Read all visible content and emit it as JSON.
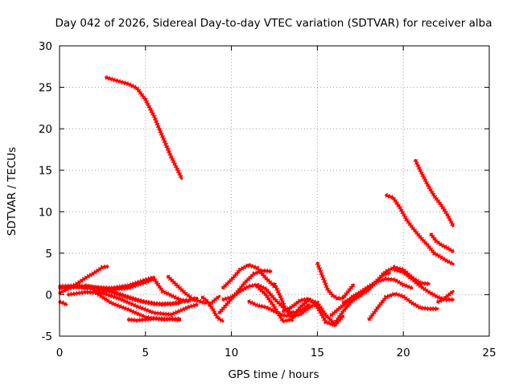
{
  "chart_data": {
    "type": "scatter",
    "title": "Day 042 of 2026, Sidereal Day-to-day VTEC variation (SDTVAR) for receiver alba",
    "xlabel": "GPS time / hours",
    "ylabel": "SDTVAR / TECUs",
    "xlim": [
      0,
      25
    ],
    "ylim": [
      -5,
      30
    ],
    "xticks": [
      "0",
      "5",
      "10",
      "15",
      "20",
      "25"
    ],
    "yticks": [
      "-5",
      "0",
      "5",
      "10",
      "15",
      "20",
      "25",
      "30"
    ],
    "grid": true,
    "marker": "+",
    "color": "#ff0000",
    "series": [
      {
        "name": "arc-1",
        "x": [
          2.7,
          3.0,
          3.5,
          4.0,
          4.5,
          5.0,
          5.5,
          6.0,
          6.5,
          7.0,
          7.1
        ],
        "y": [
          26.2,
          26.0,
          25.7,
          25.4,
          24.9,
          23.5,
          21.5,
          19.0,
          16.6,
          14.5,
          14.0
        ]
      },
      {
        "name": "arc-2",
        "x": [
          19.0,
          19.4,
          19.8,
          20.2,
          20.6,
          21.0,
          21.4,
          21.8,
          22.2,
          22.6,
          22.9
        ],
        "y": [
          12.0,
          11.7,
          10.5,
          9.0,
          7.9,
          6.9,
          6.0,
          5.0,
          4.5,
          4.0,
          3.7
        ]
      },
      {
        "name": "arc-3",
        "x": [
          20.7,
          21.0,
          21.4,
          21.8,
          22.2,
          22.6,
          22.9
        ],
        "y": [
          16.2,
          14.9,
          13.3,
          11.9,
          10.8,
          9.5,
          8.3
        ]
      },
      {
        "name": "arc-4",
        "x": [
          21.6,
          21.9,
          22.2,
          22.5,
          22.9
        ],
        "y": [
          7.3,
          6.5,
          6.0,
          5.7,
          5.2
        ]
      },
      {
        "name": "arc-5",
        "x": [
          0.0,
          0.5,
          1.0,
          1.5,
          2.0,
          2.5,
          2.8
        ],
        "y": [
          0.2,
          0.7,
          1.3,
          2.0,
          2.6,
          3.3,
          3.4
        ]
      },
      {
        "name": "arc-6",
        "x": [
          0.0,
          1.0,
          2.0,
          3.0,
          4.0,
          5.0,
          5.5
        ],
        "y": [
          1.0,
          1.1,
          0.9,
          0.8,
          1.1,
          1.8,
          2.1
        ]
      },
      {
        "name": "arc-7",
        "x": [
          0.0,
          1.0,
          2.0,
          3.0,
          4.0,
          5.0,
          6.0,
          7.0
        ],
        "y": [
          0.8,
          0.9,
          0.7,
          0.4,
          -0.3,
          -0.9,
          -1.2,
          -1.0
        ]
      },
      {
        "name": "arc-8",
        "x": [
          0.5,
          1.5,
          2.5,
          3.5,
          4.5,
          5.5,
          6.5,
          7.5,
          8.0
        ],
        "y": [
          0.0,
          0.3,
          0.2,
          -0.5,
          -1.4,
          -2.2,
          -2.4,
          -1.5,
          -1.2
        ]
      },
      {
        "name": "arc-9",
        "x": [
          2.0,
          3.0,
          4.0,
          5.0,
          6.0,
          7.0
        ],
        "y": [
          0.4,
          -1.0,
          -1.8,
          -2.7,
          -3.0,
          -2.9
        ]
      },
      {
        "name": "arc-10",
        "x": [
          1.5,
          2.5,
          3.5,
          4.5,
          5.5,
          6.5,
          7.5,
          8.0
        ],
        "y": [
          1.1,
          0.7,
          0.0,
          -0.7,
          -1.1,
          -1.1,
          -0.7,
          -0.4
        ]
      },
      {
        "name": "arc-11",
        "x": [
          4.0,
          4.5,
          5.0,
          5.5,
          6.0,
          6.5,
          7.0
        ],
        "y": [
          -3.0,
          -3.1,
          -3.0,
          -2.9,
          -2.9,
          -2.9,
          -3.1
        ]
      },
      {
        "name": "arc-12",
        "x": [
          2.0,
          3.0,
          4.0,
          5.0,
          5.5,
          6.0,
          7.0,
          7.5
        ],
        "y": [
          0.5,
          0.6,
          0.8,
          1.5,
          1.9,
          0.4,
          -0.6,
          -0.8
        ]
      },
      {
        "name": "arc-13",
        "x": [
          6.3,
          6.8,
          7.3,
          7.8,
          8.3,
          8.5
        ],
        "y": [
          2.2,
          1.2,
          0.2,
          -0.6,
          -0.9,
          -1.0
        ]
      },
      {
        "name": "arc-14",
        "x": [
          8.3,
          8.6,
          8.9,
          9.2,
          9.5
        ],
        "y": [
          -0.3,
          -0.8,
          -1.7,
          -2.8,
          -3.2
        ]
      },
      {
        "name": "arc-15",
        "x": [
          8.7,
          8.9,
          9.1,
          9.3
        ],
        "y": [
          -1.3,
          -0.9,
          -0.5,
          -0.2
        ]
      },
      {
        "name": "arc-16",
        "x": [
          9.5,
          10.0,
          10.5,
          11.0,
          11.5,
          12.0,
          12.5
        ],
        "y": [
          0.8,
          1.8,
          3.0,
          3.6,
          3.2,
          2.0,
          1.0
        ]
      },
      {
        "name": "arc-17",
        "x": [
          9.3,
          9.8,
          10.3,
          10.8,
          11.3,
          11.8,
          12.3
        ],
        "y": [
          -2.2,
          -1.0,
          0.2,
          1.5,
          2.5,
          2.9,
          2.8
        ]
      },
      {
        "name": "arc-18",
        "x": [
          9.5,
          10.0,
          10.5,
          11.0,
          11.5,
          12.0,
          12.5,
          13.0,
          13.5,
          14.0,
          14.5
        ],
        "y": [
          -0.6,
          -0.3,
          0.4,
          1.0,
          1.2,
          0.7,
          -0.5,
          -1.5,
          -2.2,
          -2.0,
          -1.2
        ]
      },
      {
        "name": "arc-19",
        "x": [
          11.0,
          11.5,
          12.0,
          12.5,
          13.0,
          13.5,
          14.0,
          14.5,
          15.0
        ],
        "y": [
          -0.8,
          -1.3,
          -1.5,
          -2.0,
          -2.5,
          -2.6,
          -2.4,
          -1.6,
          -1.0
        ]
      },
      {
        "name": "arc-20",
        "x": [
          12.5,
          12.8,
          13.1,
          13.4
        ],
        "y": [
          1.3,
          0.0,
          -1.5,
          -2.5
        ]
      },
      {
        "name": "arc-21",
        "x": [
          11.5,
          12.0,
          12.5,
          13.0,
          13.5,
          14.0,
          14.5,
          15.0,
          15.5,
          16.0,
          16.5,
          17.0,
          17.5
        ],
        "y": [
          1.0,
          0.0,
          -1.5,
          -3.2,
          -3.0,
          -1.5,
          -0.6,
          -1.0,
          -2.5,
          -3.5,
          -2.0,
          -0.8,
          -0.1
        ]
      },
      {
        "name": "arc-22",
        "x": [
          13.0,
          13.5,
          14.0,
          14.5,
          15.0,
          15.5,
          16.0,
          16.5
        ],
        "y": [
          -2.0,
          -1.5,
          -0.7,
          -0.5,
          -1.5,
          -3.3,
          -3.7,
          -2.6
        ]
      },
      {
        "name": "arc-23",
        "x": [
          15.0,
          15.3,
          15.6,
          15.9,
          16.2,
          16.5,
          16.8,
          17.1
        ],
        "y": [
          3.8,
          2.2,
          0.6,
          -0.1,
          -0.5,
          -0.4,
          0.4,
          1.2
        ]
      },
      {
        "name": "arc-24",
        "x": [
          15.8,
          16.3,
          16.8,
          17.3,
          17.8,
          18.3,
          18.8,
          19.2
        ],
        "y": [
          -2.5,
          -1.6,
          -0.8,
          0.0,
          0.6,
          1.3,
          2.4,
          2.6
        ]
      },
      {
        "name": "arc-25",
        "x": [
          16.5,
          17.0,
          17.5,
          18.0,
          18.5,
          19.0,
          19.5,
          20.0,
          20.5,
          21.0,
          21.5
        ],
        "y": [
          -1.0,
          -0.4,
          -0.1,
          0.6,
          1.7,
          2.8,
          3.3,
          3.0,
          2.1,
          1.4,
          1.3
        ]
      },
      {
        "name": "arc-26",
        "x": [
          17.0,
          17.5,
          18.0,
          18.5,
          19.0,
          19.5,
          20.0,
          20.5
        ],
        "y": [
          -0.3,
          0.3,
          1.0,
          1.6,
          1.9,
          1.8,
          1.2,
          0.8
        ]
      },
      {
        "name": "arc-27",
        "x": [
          18.0,
          18.5,
          19.0,
          19.5,
          20.0,
          20.5,
          21.0,
          21.5,
          22.0
        ],
        "y": [
          -3.0,
          -1.6,
          -0.3,
          0.1,
          -0.2,
          -1.0,
          -1.6,
          -1.7,
          -1.7
        ]
      },
      {
        "name": "arc-28",
        "x": [
          19.5,
          20.0,
          20.5,
          21.0,
          21.5,
          22.0,
          22.5,
          22.9
        ],
        "y": [
          3.0,
          2.7,
          1.9,
          1.0,
          0.3,
          -0.3,
          -0.6,
          -0.6
        ]
      },
      {
        "name": "arc-29",
        "x": [
          22.0,
          22.3,
          22.6,
          22.9
        ],
        "y": [
          -0.9,
          -0.6,
          -0.1,
          0.4
        ]
      },
      {
        "name": "arc-30",
        "x": [
          0.0,
          0.2,
          0.4
        ],
        "y": [
          -0.9,
          -1.0,
          -1.2
        ]
      }
    ]
  }
}
